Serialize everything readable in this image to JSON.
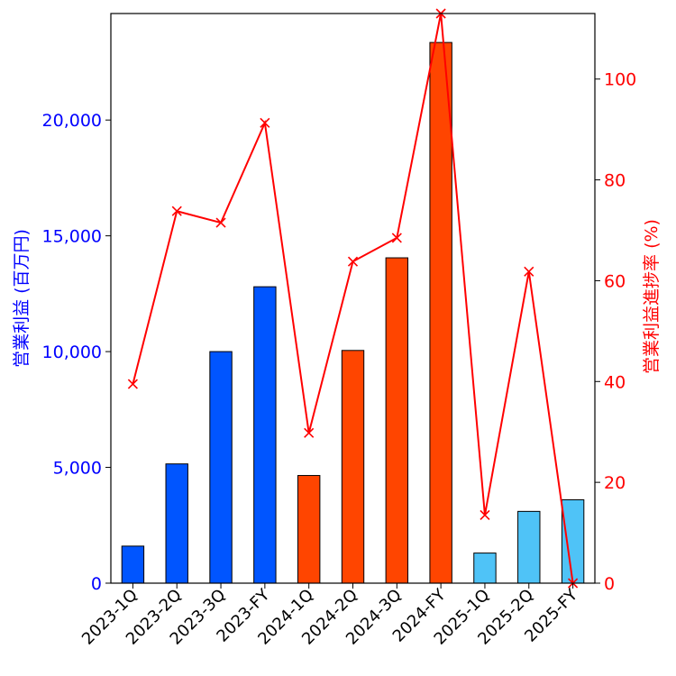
{
  "chart_data": {
    "type": "bar",
    "categories": [
      "2023-1Q",
      "2023-2Q",
      "2023-3Q",
      "2023-FY",
      "2024-1Q",
      "2024-2Q",
      "2024-3Q",
      "2024-FY",
      "2025-1Q",
      "2025-2Q",
      "2025-FY"
    ],
    "series": [
      {
        "type": "bar",
        "axis": "left",
        "values": [
          1600,
          5150,
          10000,
          12800,
          4650,
          10050,
          14050,
          23350,
          1300,
          3100,
          3600
        ],
        "colors": [
          "#0055ff",
          "#0055ff",
          "#0055ff",
          "#0055ff",
          "#ff4500",
          "#ff4500",
          "#ff4500",
          "#ff4500",
          "#4fc3f7",
          "#4fc3f7",
          "#4fc3f7"
        ]
      },
      {
        "type": "line",
        "axis": "right",
        "marker": "x",
        "color": "#ff0000",
        "values": [
          39.5,
          73.8,
          71.5,
          91.3,
          29.8,
          63.8,
          68.5,
          113,
          13.5,
          61.8,
          0
        ]
      }
    ],
    "ylabel": "営業利益 (百万円)",
    "ylabel_color": "#0000ff",
    "y2label": "営業利益進捗率 (%)",
    "y2label_color": "#ff0000",
    "ylim": [
      0,
      24600
    ],
    "y2lim": [
      0,
      113
    ],
    "yticks": [
      0,
      5000,
      10000,
      15000,
      20000
    ],
    "ytick_labels": [
      "0",
      "5,000",
      "10,000",
      "15,000",
      "20,000"
    ],
    "y2ticks": [
      0,
      20,
      40,
      60,
      80,
      100
    ],
    "y2tick_labels": [
      "0",
      "20",
      "40",
      "60",
      "80",
      "100"
    ],
    "grid": false,
    "bar_edge_color": "#000000"
  }
}
